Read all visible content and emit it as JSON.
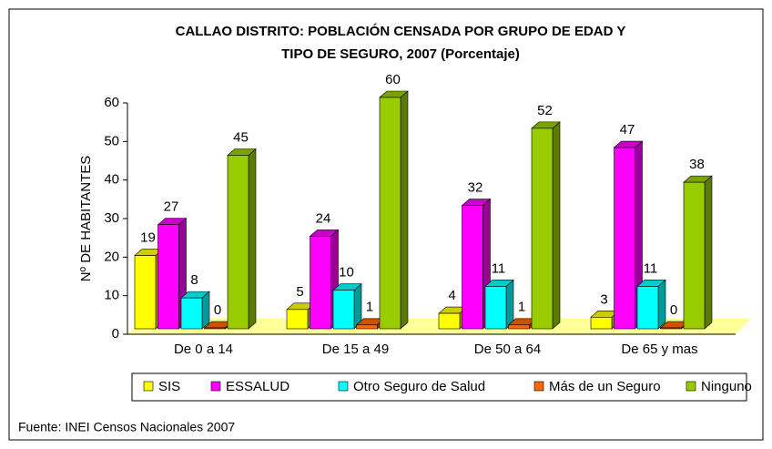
{
  "chart_data": {
    "type": "bar3d",
    "title": [
      "CALLAO DISTRITO: POBLACIÓN CENSADA POR GRUPO DE EDAD Y",
      "TIPO DE SEGURO, 2007 (Porcentaje)"
    ],
    "y_label": "Nº DE HABITANTES",
    "categories": [
      "De 0 a 14",
      "De 15 a 49",
      "De 50 a 64",
      "De 65 y mas"
    ],
    "series": [
      {
        "name": "SIS",
        "color": "#ffff00",
        "values": [
          19,
          5,
          4,
          3
        ]
      },
      {
        "name": "ESSALUD",
        "color": "#ff00ff",
        "values": [
          27,
          24,
          32,
          47
        ]
      },
      {
        "name": "Otro Seguro de Salud",
        "color": "#00ffff",
        "values": [
          8,
          10,
          11,
          11
        ]
      },
      {
        "name": "Más de un Seguro",
        "color": "#ff6600",
        "values": [
          0,
          1,
          1,
          0
        ]
      },
      {
        "name": "Ninguno",
        "color": "#99cc00",
        "values": [
          45,
          60,
          52,
          38
        ]
      }
    ],
    "ylim": [
      0,
      60
    ],
    "yticks": [
      0,
      10,
      20,
      30,
      40,
      50,
      60
    ],
    "source": "Fuente: INEI Censos Nacionales 2007"
  }
}
